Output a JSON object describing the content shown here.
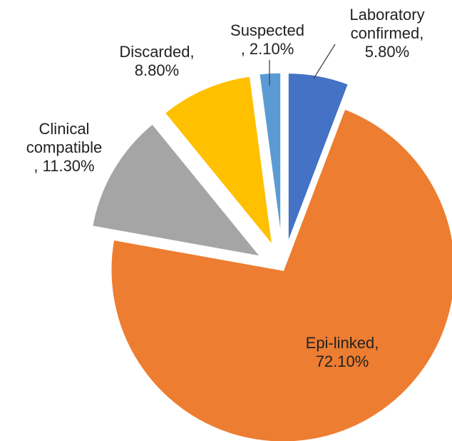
{
  "chart_data": {
    "type": "pie",
    "categories": [
      "Laboratory confirmed,",
      "Epi-linked,",
      "Clinical compatible",
      "Discarded,",
      "Suspected"
    ],
    "values": [
      5.8,
      72.1,
      11.3,
      8.8,
      2.1
    ],
    "value_labels": [
      "5.80%",
      "72.10%",
      ", 11.30%",
      "8.80%",
      ", 2.10%"
    ],
    "colors": [
      "#4472c4",
      "#ed7d31",
      "#a5a5a5",
      "#ffc000",
      "#5b9bd5"
    ],
    "exploded": [
      true,
      false,
      true,
      true,
      true
    ]
  }
}
